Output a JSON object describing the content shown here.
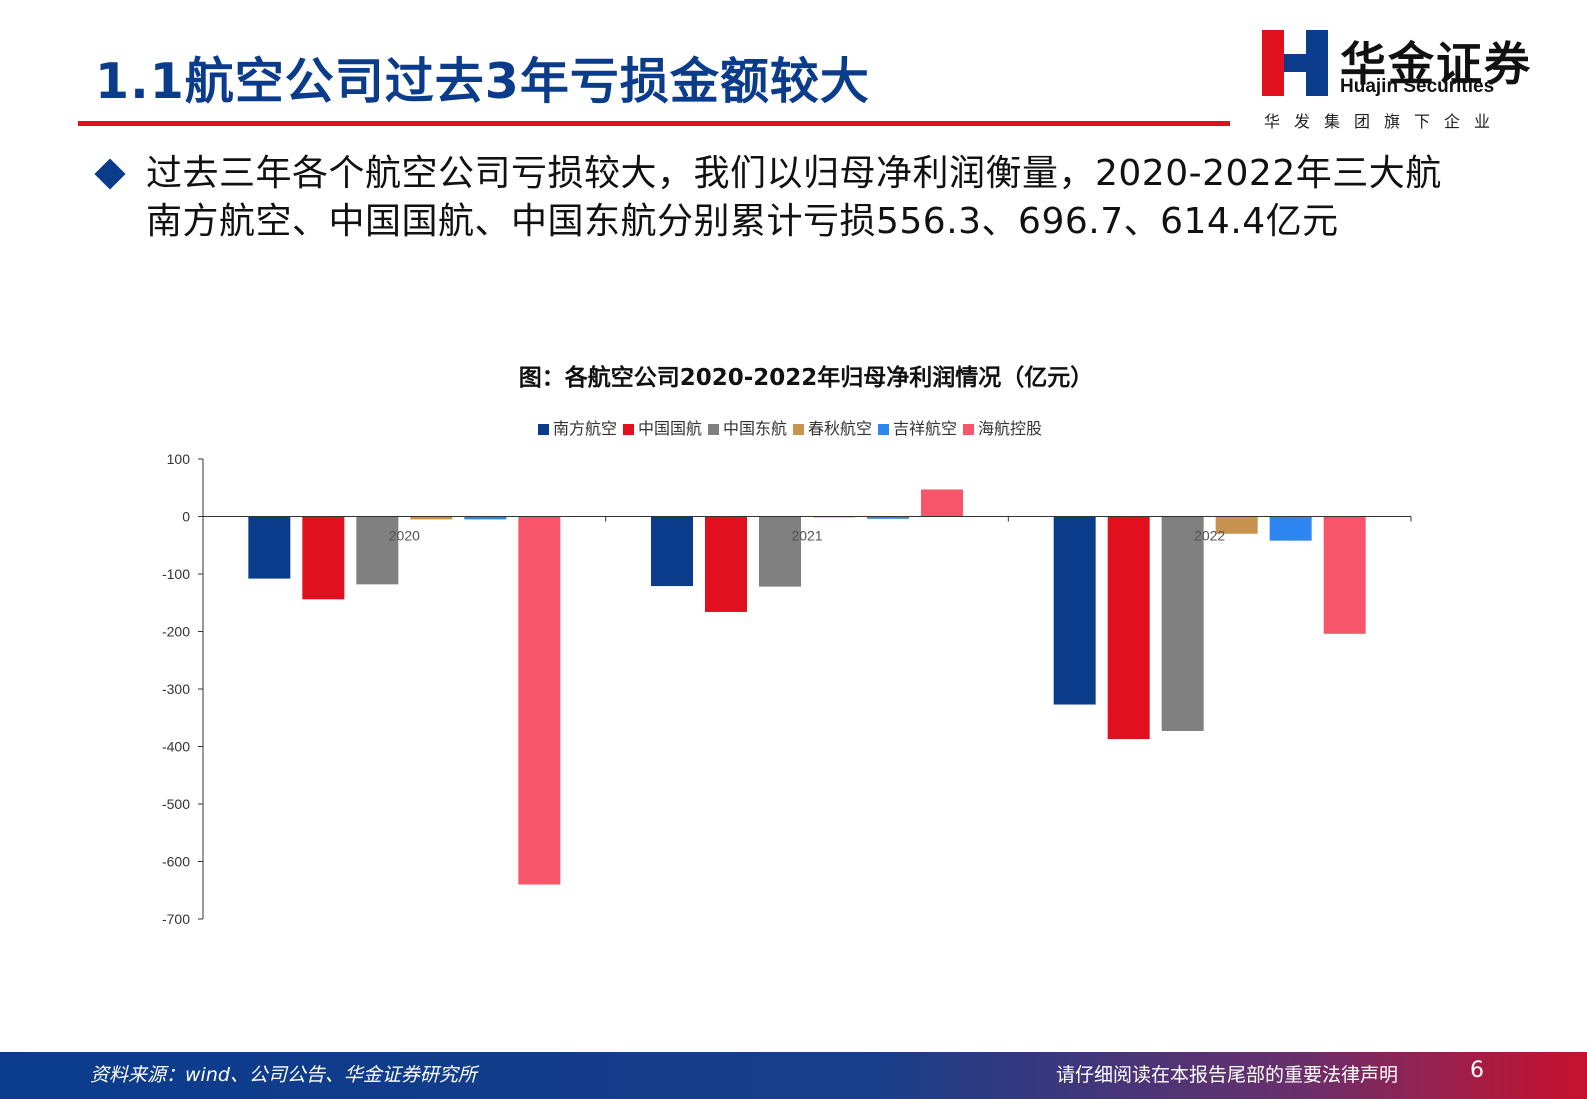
{
  "header": {
    "title": "1.1航空公司过去3年亏损金额较大",
    "logo_cn": "华金证券",
    "logo_en": "Huajin Securities",
    "logo_sub": "华发集团旗下企业"
  },
  "bullet": {
    "text": "过去三年各个航空公司亏损较大，我们以归母净利润衡量，2020-2022年三大航南方航空、中国国航、中国东航分别累计亏损556.3、696.7、614.4亿元"
  },
  "colors": {
    "brand_blue": "#0b3c8c",
    "brand_red": "#e0101e"
  },
  "chart_data": {
    "type": "bar",
    "title": "图：各航空公司2020-2022年归母净利润情况（亿元）",
    "categories": [
      "2020",
      "2021",
      "2022"
    ],
    "ylim": [
      -700,
      100
    ],
    "yticks": [
      100,
      0,
      -100,
      -200,
      -300,
      -400,
      -500,
      -600,
      -700
    ],
    "legend_position": "top",
    "grid": false,
    "series": [
      {
        "name": "南方航空",
        "color": "#0b3c8c",
        "values": [
          -108,
          -121,
          -327
        ]
      },
      {
        "name": "中国国航",
        "color": "#e0101e",
        "values": [
          -144,
          -166,
          -387
        ]
      },
      {
        "name": "中国东航",
        "color": "#808080",
        "values": [
          -118,
          -122,
          -373
        ]
      },
      {
        "name": "春秋航空",
        "color": "#c8934e",
        "values": [
          -5,
          -0.5,
          -30
        ]
      },
      {
        "name": "吉祥航空",
        "color": "#2e86f0",
        "values": [
          -5,
          -4,
          -42
        ]
      },
      {
        "name": "海航控股",
        "color": "#f7566a",
        "values": [
          -640,
          47,
          -204
        ]
      }
    ]
  },
  "footer": {
    "source": "资料来源：wind、公司公告、华金证券研究所",
    "legal": "请仔细阅读在本报告尾部的重要法律声明",
    "page": "6"
  }
}
